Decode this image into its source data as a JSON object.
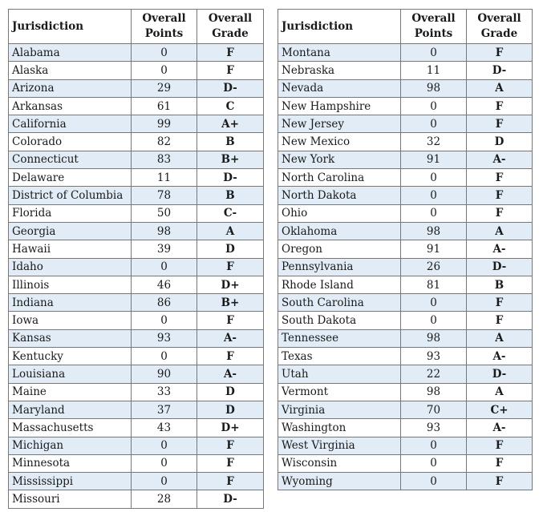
{
  "headers": {
    "jurisdiction": "Jurisdiction",
    "points_line1": "Overall",
    "points_line2": "Points",
    "grade_line1": "Overall",
    "grade_line2": "Grade"
  },
  "left_table": [
    {
      "name": "Alabama",
      "points": "0",
      "grade": "F"
    },
    {
      "name": "Alaska",
      "points": "0",
      "grade": "F"
    },
    {
      "name": "Arizona",
      "points": "29",
      "grade": "D-"
    },
    {
      "name": "Arkansas",
      "points": "61",
      "grade": "C"
    },
    {
      "name": "California",
      "points": "99",
      "grade": "A+"
    },
    {
      "name": "Colorado",
      "points": "82",
      "grade": "B"
    },
    {
      "name": "Connecticut",
      "points": "83",
      "grade": "B+"
    },
    {
      "name": "Delaware",
      "points": "11",
      "grade": "D-"
    },
    {
      "name": "District of Columbia",
      "points": "78",
      "grade": "B"
    },
    {
      "name": "Florida",
      "points": "50",
      "grade": "C-"
    },
    {
      "name": "Georgia",
      "points": "98",
      "grade": "A"
    },
    {
      "name": "Hawaii",
      "points": "39",
      "grade": "D"
    },
    {
      "name": "Idaho",
      "points": "0",
      "grade": "F"
    },
    {
      "name": "Illinois",
      "points": "46",
      "grade": "D+"
    },
    {
      "name": "Indiana",
      "points": "86",
      "grade": "B+"
    },
    {
      "name": "Iowa",
      "points": "0",
      "grade": "F"
    },
    {
      "name": "Kansas",
      "points": "93",
      "grade": "A-"
    },
    {
      "name": "Kentucky",
      "points": "0",
      "grade": "F"
    },
    {
      "name": "Louisiana",
      "points": "90",
      "grade": "A-"
    },
    {
      "name": "Maine",
      "points": "33",
      "grade": "D"
    },
    {
      "name": "Maryland",
      "points": "37",
      "grade": "D"
    },
    {
      "name": "Massachusetts",
      "points": "43",
      "grade": "D+"
    },
    {
      "name": "Michigan",
      "points": "0",
      "grade": "F"
    },
    {
      "name": "Minnesota",
      "points": "0",
      "grade": "F"
    },
    {
      "name": "Mississippi",
      "points": "0",
      "grade": "F"
    },
    {
      "name": "Missouri",
      "points": "28",
      "grade": "D-"
    }
  ],
  "right_table": [
    {
      "name": "Montana",
      "points": "0",
      "grade": "F"
    },
    {
      "name": "Nebraska",
      "points": "11",
      "grade": "D-"
    },
    {
      "name": "Nevada",
      "points": "98",
      "grade": "A"
    },
    {
      "name": "New Hampshire",
      "points": "0",
      "grade": "F"
    },
    {
      "name": "New Jersey",
      "points": "0",
      "grade": "F"
    },
    {
      "name": "New Mexico",
      "points": "32",
      "grade": "D"
    },
    {
      "name": "New York",
      "points": "91",
      "grade": "A-"
    },
    {
      "name": "North Carolina",
      "points": "0",
      "grade": "F"
    },
    {
      "name": "North Dakota",
      "points": "0",
      "grade": "F"
    },
    {
      "name": "Ohio",
      "points": "0",
      "grade": "F"
    },
    {
      "name": "Oklahoma",
      "points": "98",
      "grade": "A"
    },
    {
      "name": "Oregon",
      "points": "91",
      "grade": "A-"
    },
    {
      "name": "Pennsylvania",
      "points": "26",
      "grade": "D-"
    },
    {
      "name": "Rhode Island",
      "points": "81",
      "grade": "B"
    },
    {
      "name": "South Carolina",
      "points": "0",
      "grade": "F"
    },
    {
      "name": "South Dakota",
      "points": "0",
      "grade": "F"
    },
    {
      "name": "Tennessee",
      "points": "98",
      "grade": "A"
    },
    {
      "name": "Texas",
      "points": "93",
      "grade": "A-"
    },
    {
      "name": "Utah",
      "points": "22",
      "grade": "D-"
    },
    {
      "name": "Vermont",
      "points": "98",
      "grade": "A"
    },
    {
      "name": "Virginia",
      "points": "70",
      "grade": "C+"
    },
    {
      "name": "Washington",
      "points": "93",
      "grade": "A-"
    },
    {
      "name": "West Virginia",
      "points": "0",
      "grade": "F"
    },
    {
      "name": "Wisconsin",
      "points": "0",
      "grade": "F"
    },
    {
      "name": "Wyoming",
      "points": "0",
      "grade": "F"
    }
  ],
  "colors": {
    "row_stripe": "#e1ecf7",
    "border": "#777777"
  }
}
